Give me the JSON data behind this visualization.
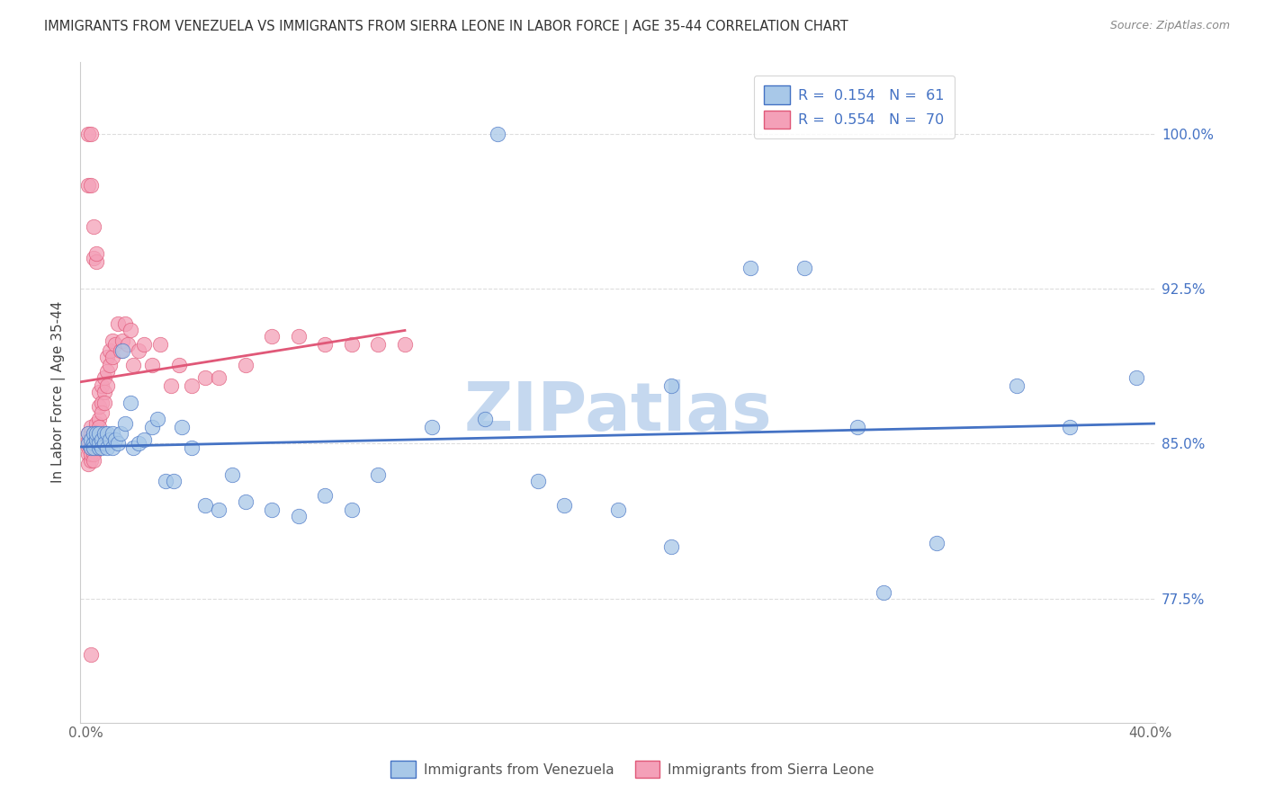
{
  "title": "IMMIGRANTS FROM VENEZUELA VS IMMIGRANTS FROM SIERRA LEONE IN LABOR FORCE | AGE 35-44 CORRELATION CHART",
  "source": "Source: ZipAtlas.com",
  "ylabel_label": "In Labor Force | Age 35-44",
  "ytick_labels": [
    "100.0%",
    "92.5%",
    "85.0%",
    "77.5%"
  ],
  "ytick_values": [
    1.0,
    0.925,
    0.85,
    0.775
  ],
  "xlim": [
    -0.002,
    0.402
  ],
  "ylim": [
    0.715,
    1.035
  ],
  "color_venezuela": "#a8c8e8",
  "color_sierra_leone": "#f4a0b8",
  "line_color_venezuela": "#4472c4",
  "line_color_sierra_leone": "#e05878",
  "venezuela_x": [
    0.001,
    0.001,
    0.002,
    0.002,
    0.003,
    0.003,
    0.003,
    0.004,
    0.004,
    0.005,
    0.005,
    0.005,
    0.006,
    0.006,
    0.007,
    0.007,
    0.008,
    0.008,
    0.009,
    0.01,
    0.01,
    0.011,
    0.012,
    0.013,
    0.014,
    0.015,
    0.017,
    0.018,
    0.02,
    0.022,
    0.025,
    0.027,
    0.03,
    0.033,
    0.036,
    0.04,
    0.045,
    0.05,
    0.055,
    0.06,
    0.07,
    0.08,
    0.09,
    0.1,
    0.11,
    0.13,
    0.15,
    0.17,
    0.2,
    0.22,
    0.25,
    0.27,
    0.29,
    0.3,
    0.32,
    0.35,
    0.37,
    0.395,
    0.22,
    0.18,
    0.155
  ],
  "venezuela_y": [
    0.85,
    0.855,
    0.848,
    0.852,
    0.85,
    0.855,
    0.848,
    0.852,
    0.855,
    0.848,
    0.85,
    0.855,
    0.852,
    0.848,
    0.855,
    0.85,
    0.855,
    0.848,
    0.852,
    0.855,
    0.848,
    0.852,
    0.85,
    0.855,
    0.895,
    0.86,
    0.87,
    0.848,
    0.85,
    0.852,
    0.858,
    0.862,
    0.832,
    0.832,
    0.858,
    0.848,
    0.82,
    0.818,
    0.835,
    0.822,
    0.818,
    0.815,
    0.825,
    0.818,
    0.835,
    0.858,
    0.862,
    0.832,
    0.818,
    0.878,
    0.935,
    0.935,
    0.858,
    0.778,
    0.802,
    0.878,
    0.858,
    0.882,
    0.8,
    0.82,
    1.0
  ],
  "sierra_leone_x": [
    0.001,
    0.001,
    0.001,
    0.001,
    0.001,
    0.002,
    0.002,
    0.002,
    0.002,
    0.002,
    0.002,
    0.003,
    0.003,
    0.003,
    0.003,
    0.003,
    0.004,
    0.004,
    0.004,
    0.004,
    0.005,
    0.005,
    0.005,
    0.005,
    0.006,
    0.006,
    0.006,
    0.007,
    0.007,
    0.007,
    0.008,
    0.008,
    0.008,
    0.009,
    0.009,
    0.01,
    0.01,
    0.011,
    0.012,
    0.013,
    0.014,
    0.015,
    0.016,
    0.017,
    0.018,
    0.02,
    0.022,
    0.025,
    0.028,
    0.032,
    0.035,
    0.04,
    0.045,
    0.05,
    0.06,
    0.07,
    0.08,
    0.09,
    0.1,
    0.11,
    0.12,
    0.001,
    0.001,
    0.002,
    0.002,
    0.003,
    0.003,
    0.004,
    0.004,
    0.002
  ],
  "sierra_leone_y": [
    0.848,
    0.852,
    0.845,
    0.855,
    0.84,
    0.855,
    0.848,
    0.842,
    0.852,
    0.845,
    0.858,
    0.852,
    0.845,
    0.855,
    0.848,
    0.842,
    0.86,
    0.855,
    0.848,
    0.852,
    0.862,
    0.868,
    0.875,
    0.858,
    0.87,
    0.878,
    0.865,
    0.882,
    0.875,
    0.87,
    0.892,
    0.885,
    0.878,
    0.895,
    0.888,
    0.9,
    0.892,
    0.898,
    0.908,
    0.895,
    0.9,
    0.908,
    0.898,
    0.905,
    0.888,
    0.895,
    0.898,
    0.888,
    0.898,
    0.878,
    0.888,
    0.878,
    0.882,
    0.882,
    0.888,
    0.902,
    0.902,
    0.898,
    0.898,
    0.898,
    0.898,
    0.975,
    1.0,
    1.0,
    0.975,
    0.94,
    0.955,
    0.938,
    0.942,
    0.748
  ],
  "watermark_text": "ZIPatlas",
  "watermark_color": "#c5d8ef",
  "bg_color": "#ffffff",
  "grid_color": "#dddddd",
  "spine_color": "#cccccc",
  "tick_color": "#666666"
}
